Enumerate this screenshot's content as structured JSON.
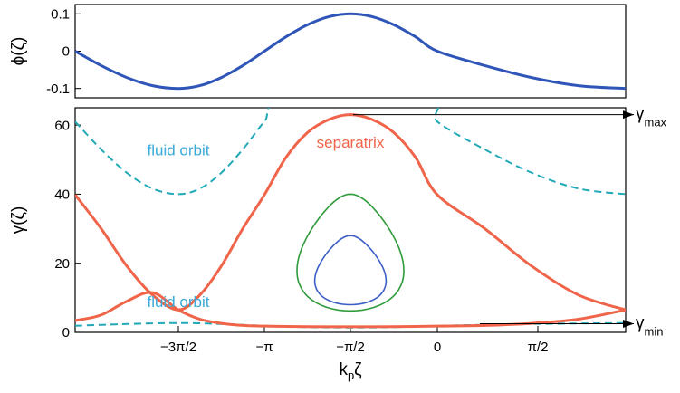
{
  "colors": {
    "phi": "#2f55b8",
    "separatrix": "#f0644a",
    "fluid": "#21a9b7",
    "green_orbit": "#2e9a3a",
    "blue_orbit": "#3c5fc6",
    "separatrix_label": "#f0644a",
    "fluid_label": "#3aa9d8"
  },
  "chart_data": [
    {
      "type": "line",
      "panel": "top",
      "ylabel": "ϕ(ζ)",
      "xlim": [
        -6.2832,
        1.5708
      ],
      "ylim": [
        -0.115,
        0.115
      ],
      "y_ticks": [
        {
          "value": 0.1,
          "label": "0.1"
        },
        {
          "value": 0,
          "label": "0"
        },
        {
          "value": -0.1,
          "label": "-0.1"
        }
      ],
      "series": [
        {
          "curve": "phi",
          "x": [
            -6.2832,
            -5.8905,
            -5.4978,
            -5.1051,
            -4.7124,
            -4.3197,
            -3.927,
            -3.5343,
            -3.1416,
            -2.7489,
            -2.3562,
            -1.9635,
            -1.5708,
            -1.1781,
            -0.7854,
            -0.3927,
            0,
            0.3927,
            0.7854,
            1.1781,
            1.5708
          ],
          "y": [
            0,
            -0.0383,
            -0.0707,
            -0.0924,
            -0.1,
            -0.0924,
            -0.0707,
            -0.0383,
            0,
            0.0383,
            0.0707,
            0.0924,
            0.1,
            0.0924,
            0.0707,
            0.0383,
            0,
            -0.0383,
            -0.0707,
            -0.0924,
            -0.1
          ]
        }
      ]
    },
    {
      "type": "line",
      "panel": "bottom",
      "xlabel": "kpζ",
      "xlabel_main": "k",
      "xlabel_sub": "p",
      "xlabel_tail": "ζ",
      "ylabel": "γ(ζ)",
      "xlim": [
        -6.2832,
        1.5708
      ],
      "ylim": [
        0,
        65
      ],
      "x_ticks": [
        {
          "value": -4.7124,
          "label": "−3π/2"
        },
        {
          "value": -3.1416,
          "label": "−π"
        },
        {
          "value": -1.5708,
          "label": "−π/2"
        },
        {
          "value": 0,
          "label": "0"
        },
        {
          "value": 1.5708,
          "label": "π/2"
        }
      ],
      "y_ticks": [
        {
          "value": 0,
          "label": "0"
        },
        {
          "value": 20,
          "label": "20"
        },
        {
          "value": 40,
          "label": "40"
        },
        {
          "value": 60,
          "label": "60"
        }
      ],
      "gamma_max": 63,
      "gamma_min": 2.5,
      "series": [
        {
          "curve": "separatrix_upper",
          "x": [
            -6.2832,
            -5.8905,
            -5.4978,
            -5.1051,
            -4.7124,
            -4.3197,
            -3.927,
            -3.5343,
            -3.1416,
            -2.7489,
            -2.3562,
            -1.9635,
            -1.5708,
            -1.1781,
            -0.7854,
            -0.3927,
            0,
            0.3927,
            0.7854,
            1.1781,
            1.5708
          ],
          "y": [
            39.8,
            30.1,
            19.2,
            10.8,
            6.5,
            10.8,
            19.2,
            30.1,
            39.8,
            50.6,
            57.8,
            61.6,
            63,
            61.6,
            57.8,
            50.6,
            39.8,
            30.1,
            19.2,
            10.8,
            6.5
          ]
        },
        {
          "curve": "separatrix_lower",
          "x": [
            -6.2832,
            -5.8905,
            -5.4978,
            -5.1051,
            -4.7124,
            -4.3197,
            -3.927,
            -3.5343,
            -3.1416,
            -2.7489,
            -2.3562,
            -1.9635,
            -1.5708,
            -1.1781,
            -0.7854,
            -0.3927,
            0,
            0.3927,
            0.7854,
            1.1781,
            1.5708
          ],
          "y": [
            3.4,
            5.0,
            9.0,
            11.5,
            6.5,
            3.8,
            2.6,
            2.0,
            1.8,
            1.7,
            1.65,
            1.6,
            1.6,
            1.6,
            1.65,
            1.7,
            1.8,
            2.0,
            2.6,
            3.8,
            6.5
          ]
        },
        {
          "curve": "fluid_upper",
          "x": [
            -6.2832,
            -5.8905,
            -5.4978,
            -5.1051,
            -4.7124,
            -4.3197,
            -3.927,
            -3.5343,
            -3.1416,
            -2.7489,
            -0.1963,
            0,
            0.3927,
            0.7854,
            1.1781,
            1.5708
          ],
          "y": [
            61.0,
            53.0,
            46.2,
            41.6,
            40.0,
            41.6,
            46.2,
            53.0,
            61.0,
            67.0,
            67.0,
            61.0,
            53.0,
            46.2,
            41.6,
            40.0
          ]
        },
        {
          "curve": "fluid_lower",
          "x": [
            -6.2832,
            -5.4978,
            -4.7124,
            -3.927,
            -3.1416,
            -2.3562,
            -1.5708,
            -0.7854,
            0,
            0.7854,
            1.5708
          ],
          "y": [
            1.9,
            2.4,
            2.7,
            2.4,
            1.9,
            1.5,
            1.4,
            1.5,
            1.9,
            2.4,
            2.7
          ]
        },
        {
          "curve": "orbit_green",
          "center_x": -1.5708,
          "x_halfwidth": 1.26,
          "y_min": 6.2,
          "y_max": 40.0
        },
        {
          "curve": "orbit_blue",
          "center_x": -1.5708,
          "x_halfwidth": 0.84,
          "y_min": 8.0,
          "y_max": 28.0
        }
      ],
      "annotations": [
        {
          "text": "separatrix",
          "x": -1.5708,
          "y": 53.5,
          "color_key": "separatrix_label"
        },
        {
          "text": "fluid orbit",
          "x": -4.7124,
          "y": 51.3,
          "color_key": "fluid_label"
        },
        {
          "text": "fluid orbit",
          "x": -4.7124,
          "y": 7.4,
          "color_key": "fluid_label"
        }
      ],
      "markers": [
        {
          "main": "γ",
          "sub": "max",
          "value": 63
        },
        {
          "main": "γ",
          "sub": "min",
          "value": 2.5
        }
      ]
    }
  ]
}
